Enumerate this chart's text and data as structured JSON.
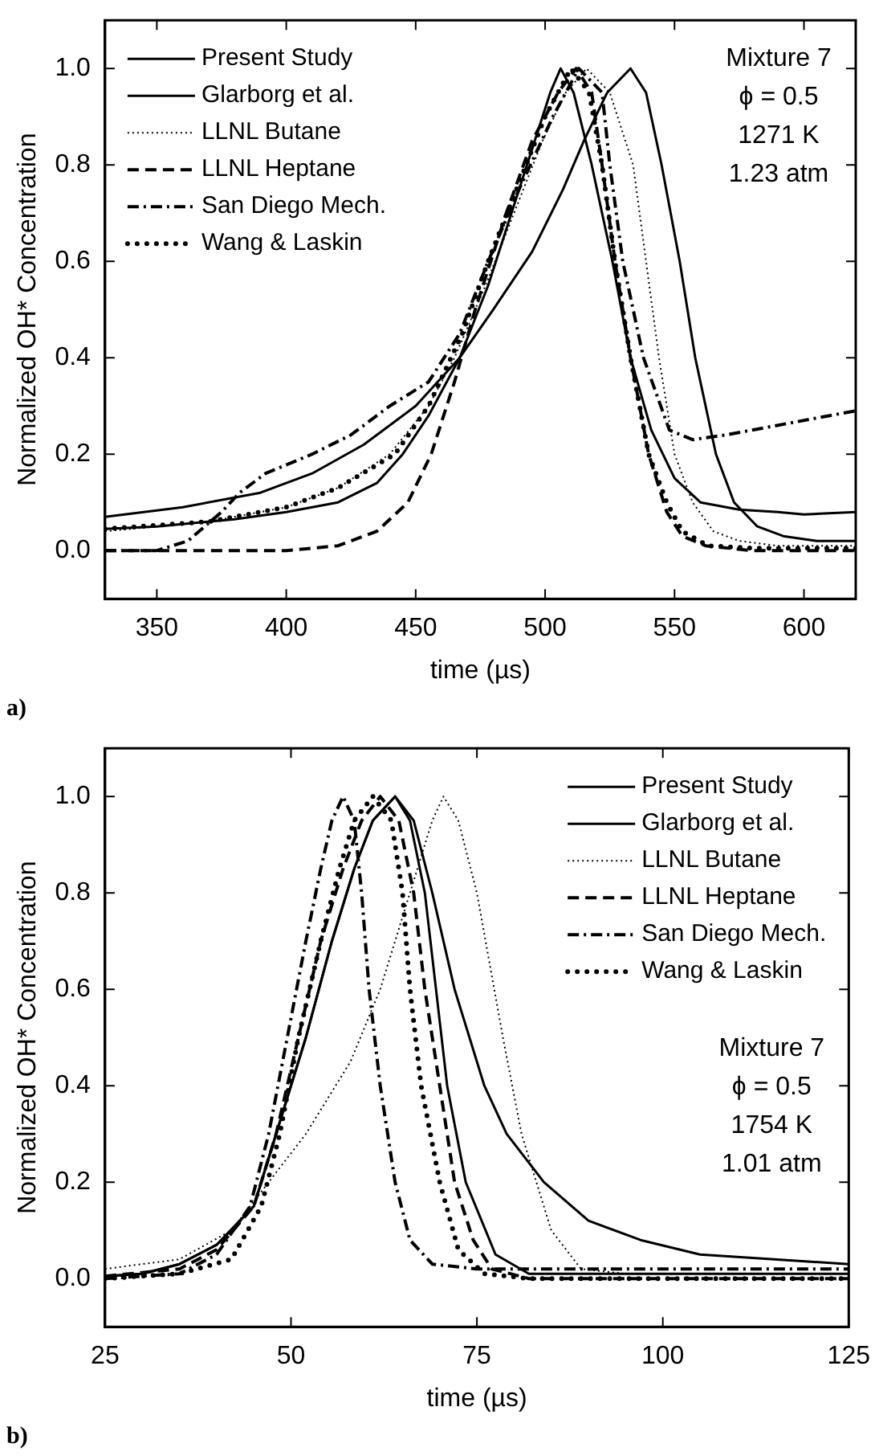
{
  "chart_data": [
    {
      "type": "line",
      "title": "a)",
      "xlabel": "time (µs)",
      "ylabel": "Normalized OH* Concentration",
      "legend": "top left",
      "grid": false,
      "marker": "none",
      "xlim": [
        330,
        620
      ],
      "xticks": [
        350,
        400,
        450,
        500,
        550,
        600
      ],
      "ylim": [
        -0.1,
        1.1
      ],
      "yticks": [
        {
          "value": 0,
          "label": "0.0"
        },
        {
          "value": 0.2,
          "label": "0.2"
        },
        {
          "value": 0.4,
          "label": "0.4"
        },
        {
          "value": 0.6,
          "label": "0.6"
        },
        {
          "value": 0.8,
          "label": "0.8"
        },
        {
          "value": 1,
          "label": "1.0"
        }
      ],
      "annotations": [
        "Mixture 7",
        "ϕ = 0.5",
        "1271 K",
        "1.23 atm"
      ],
      "series": [
        {
          "name": "Present Study",
          "color": "#000000",
          "line_style": "solid",
          "x": [
            330,
            350,
            380,
            400,
            420,
            435,
            445,
            455,
            467,
            478,
            487,
            496,
            502,
            506,
            511,
            518,
            526,
            533,
            541,
            550,
            560,
            575,
            590,
            600,
            620
          ],
          "values": [
            0.045,
            0.05,
            0.065,
            0.08,
            0.1,
            0.14,
            0.2,
            0.28,
            0.4,
            0.55,
            0.7,
            0.85,
            0.95,
            1.0,
            0.95,
            0.8,
            0.6,
            0.4,
            0.25,
            0.15,
            0.1,
            0.085,
            0.08,
            0.075,
            0.08
          ]
        },
        {
          "name": "Glarborg et al.",
          "color": "#000000",
          "line_style": "solid",
          "x": [
            330,
            360,
            390,
            410,
            430,
            450,
            467,
            480,
            495,
            507,
            515,
            524,
            533,
            539,
            545,
            552,
            558,
            566,
            573,
            582,
            592,
            605,
            620
          ],
          "values": [
            0.07,
            0.09,
            0.12,
            0.16,
            0.22,
            0.3,
            0.4,
            0.5,
            0.62,
            0.75,
            0.85,
            0.95,
            1.0,
            0.95,
            0.8,
            0.6,
            0.4,
            0.2,
            0.1,
            0.05,
            0.03,
            0.02,
            0.02
          ]
        },
        {
          "name": "LLNL Butane",
          "color": "#000000",
          "line_style": "dotted",
          "x": [
            330,
            370,
            400,
            420,
            440,
            455,
            465,
            477,
            488,
            499,
            508,
            516,
            525,
            534,
            539,
            544,
            550,
            557,
            565,
            575,
            590,
            620
          ],
          "values": [
            0.04,
            0.06,
            0.09,
            0.13,
            0.2,
            0.3,
            0.4,
            0.55,
            0.7,
            0.85,
            0.95,
            1.0,
            0.95,
            0.8,
            0.6,
            0.4,
            0.2,
            0.1,
            0.04,
            0.02,
            0.01,
            0.01
          ]
        },
        {
          "name": "LLNL Heptane",
          "color": "#000000",
          "line_style": "dashed",
          "x": [
            330,
            400,
            420,
            435,
            447,
            456,
            465,
            473,
            485,
            495,
            505,
            512,
            518,
            522,
            527,
            533,
            540,
            547,
            553,
            562,
            580,
            620
          ],
          "values": [
            0.0,
            0.0,
            0.01,
            0.04,
            0.1,
            0.2,
            0.35,
            0.5,
            0.7,
            0.85,
            0.95,
            1.0,
            0.95,
            0.8,
            0.6,
            0.4,
            0.2,
            0.08,
            0.03,
            0.01,
            0.0,
            0.0
          ]
        },
        {
          "name": "San Diego Mech.",
          "color": "#000000",
          "line_style": "dashdot",
          "x": [
            330,
            350,
            362,
            375,
            382,
            392,
            410,
            425,
            440,
            455,
            467,
            478,
            490,
            503,
            513,
            522,
            525,
            530,
            538,
            548,
            557,
            570,
            590,
            610,
            620
          ],
          "values": [
            0.0,
            0.0,
            0.02,
            0.08,
            0.12,
            0.16,
            0.2,
            0.24,
            0.3,
            0.35,
            0.45,
            0.6,
            0.75,
            0.9,
            1.0,
            0.95,
            0.8,
            0.6,
            0.4,
            0.25,
            0.23,
            0.24,
            0.26,
            0.28,
            0.29
          ]
        },
        {
          "name": "Wang & Laskin",
          "color": "#000000",
          "line_style": "dots",
          "x": [
            330,
            370,
            400,
            420,
            442,
            455,
            468,
            478,
            489,
            500,
            510,
            517,
            522,
            527,
            533,
            540,
            547,
            553,
            563,
            580,
            620
          ],
          "values": [
            0.045,
            0.06,
            0.09,
            0.13,
            0.2,
            0.3,
            0.45,
            0.6,
            0.75,
            0.9,
            1.0,
            0.95,
            0.8,
            0.6,
            0.4,
            0.2,
            0.1,
            0.04,
            0.01,
            0.005,
            0.005
          ]
        }
      ]
    },
    {
      "type": "line",
      "title": "b)",
      "xlabel": "time (µs)",
      "ylabel": "Normalized OH* Concentration",
      "legend": "top right",
      "grid": false,
      "marker": "none",
      "xlim": [
        25,
        125
      ],
      "xticks": [
        25,
        50,
        75,
        100,
        125
      ],
      "ylim": [
        -0.1,
        1.1
      ],
      "yticks": [
        {
          "value": 0,
          "label": "0.0"
        },
        {
          "value": 0.2,
          "label": "0.2"
        },
        {
          "value": 0.4,
          "label": "0.4"
        },
        {
          "value": 0.6,
          "label": "0.6"
        },
        {
          "value": 0.8,
          "label": "0.8"
        },
        {
          "value": 1,
          "label": "1.0"
        }
      ],
      "annotations": [
        "Mixture 7",
        "ϕ = 0.5",
        "1754 K",
        "1.01 atm"
      ],
      "series": [
        {
          "name": "Present Study",
          "color": "#000000",
          "line_style": "solid",
          "x": [
            25,
            30,
            35,
            40,
            45,
            48,
            52,
            55.5,
            58.5,
            61,
            64,
            66.5,
            69,
            72,
            76,
            79,
            84,
            90,
            97,
            105,
            115,
            125
          ],
          "values": [
            0.005,
            0.01,
            0.03,
            0.07,
            0.15,
            0.3,
            0.5,
            0.7,
            0.85,
            0.95,
            1.0,
            0.95,
            0.8,
            0.6,
            0.4,
            0.3,
            0.2,
            0.12,
            0.08,
            0.05,
            0.04,
            0.03
          ]
        },
        {
          "name": "Glarborg et al.",
          "color": "#000000",
          "line_style": "solid",
          "x": [
            25,
            30,
            35,
            40,
            45,
            48,
            52,
            55.5,
            58.5,
            61,
            64,
            66,
            68,
            69.5,
            71,
            73.5,
            77.5,
            82,
            125
          ],
          "values": [
            0.005,
            0.01,
            0.03,
            0.07,
            0.15,
            0.3,
            0.5,
            0.7,
            0.85,
            0.95,
            1.0,
            0.95,
            0.8,
            0.6,
            0.4,
            0.2,
            0.05,
            0.01,
            0.01
          ]
        },
        {
          "name": "LLNL Butane",
          "color": "#000000",
          "line_style": "dotted",
          "x": [
            25,
            35,
            42,
            47,
            52,
            58,
            62,
            66,
            69,
            70.5,
            72.5,
            75,
            78.5,
            81,
            85,
            89,
            95,
            125
          ],
          "values": [
            0.02,
            0.04,
            0.1,
            0.2,
            0.3,
            0.45,
            0.6,
            0.8,
            0.95,
            1.0,
            0.95,
            0.8,
            0.5,
            0.3,
            0.1,
            0.02,
            0.01,
            0.01
          ]
        },
        {
          "name": "LLNL Heptane",
          "color": "#000000",
          "line_style": "dashed",
          "x": [
            25,
            35,
            40,
            45,
            48,
            51,
            54,
            57,
            59.5,
            62,
            64.5,
            66.5,
            68,
            70,
            72,
            74.5,
            77,
            82,
            125
          ],
          "values": [
            0.005,
            0.02,
            0.06,
            0.15,
            0.3,
            0.5,
            0.7,
            0.85,
            0.95,
            1.0,
            0.95,
            0.8,
            0.6,
            0.4,
            0.2,
            0.08,
            0.02,
            0.0,
            0.0
          ]
        },
        {
          "name": "San Diego Mech.",
          "color": "#000000",
          "line_style": "dashdot",
          "x": [
            25,
            35,
            40,
            44.5,
            47,
            49.5,
            52,
            54,
            55.5,
            57,
            58.5,
            59.5,
            60.5,
            62,
            64,
            66,
            69,
            75,
            125
          ],
          "values": [
            0.0,
            0.01,
            0.05,
            0.15,
            0.3,
            0.5,
            0.7,
            0.85,
            0.95,
            1.0,
            0.95,
            0.8,
            0.6,
            0.4,
            0.2,
            0.08,
            0.03,
            0.02,
            0.02
          ]
        },
        {
          "name": "Wang & Laskin",
          "color": "#000000",
          "line_style": "dots",
          "x": [
            25,
            35,
            42,
            46,
            48.5,
            51,
            54,
            56.5,
            58.5,
            61,
            63.5,
            65,
            66,
            67.5,
            70,
            72.5,
            76,
            82,
            125
          ],
          "values": [
            0.0,
            0.01,
            0.04,
            0.15,
            0.3,
            0.5,
            0.7,
            0.85,
            0.95,
            1.0,
            0.95,
            0.8,
            0.6,
            0.4,
            0.2,
            0.06,
            0.01,
            0.0,
            0.0
          ]
        }
      ]
    }
  ]
}
